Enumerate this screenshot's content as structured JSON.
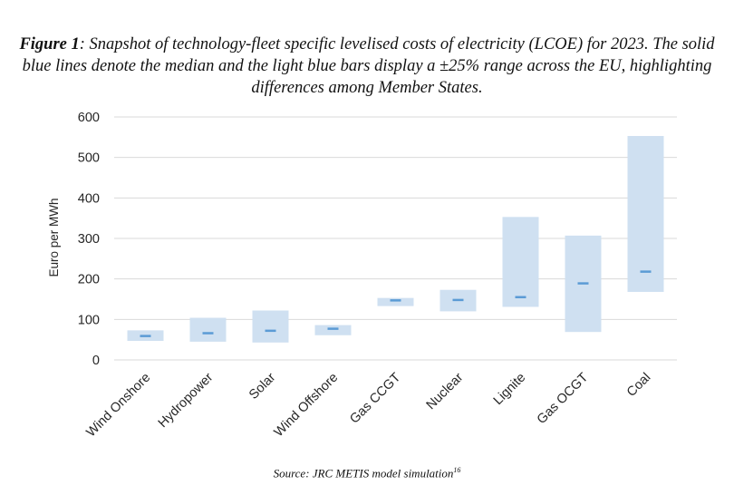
{
  "figure": {
    "label": "Figure 1",
    "caption": ": Snapshot of technology-fleet specific levelised costs of electricity (LCOE) for 2023. The solid blue lines denote the median and the light blue bars display a ±25% range across the EU, highlighting differences among Member States.",
    "source": "Source: JRC METIS model simulation",
    "source_footnote": "16"
  },
  "colors": {
    "range_bar": "#cfe0f1",
    "median_line": "#5b9bd5",
    "grid": "#d9d9d9",
    "text": "#262626"
  },
  "chart_data": {
    "type": "bar",
    "title": "",
    "xlabel": "",
    "ylabel": "Euro per MWh",
    "ylim": [
      0,
      600
    ],
    "yticks": [
      "0",
      "100",
      "200",
      "300",
      "400",
      "500",
      "600"
    ],
    "grid": true,
    "legend": "none",
    "categories": [
      "Wind Onshore",
      "Hydropower",
      "Solar",
      "Wind Offshore",
      "Gas CCGT",
      "Nuclear",
      "Lignite",
      "Gas OCGT",
      "Coal"
    ],
    "series": [
      {
        "low": [
          47,
          45,
          43,
          61,
          133,
          120,
          131,
          69,
          168
        ]
      },
      {
        "high": [
          73,
          104,
          122,
          86,
          153,
          173,
          353,
          307,
          553
        ]
      },
      {
        "median": [
          59,
          66,
          72,
          77,
          147,
          148,
          155,
          189,
          218
        ]
      }
    ]
  }
}
